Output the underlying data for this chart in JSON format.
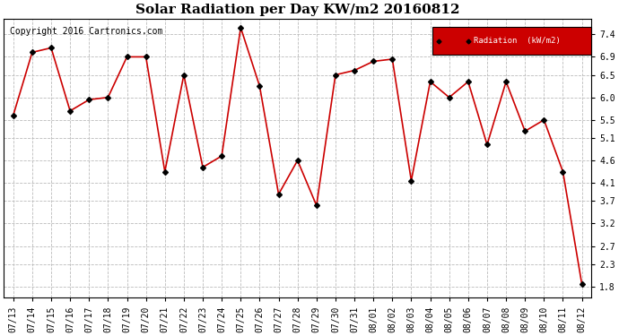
{
  "title": "Solar Radiation per Day KW/m2 20160812",
  "copyright": "Copyright 2016 Cartronics.com",
  "legend_label": "Radiation  (kW/m2)",
  "x_labels": [
    "07/13",
    "07/14",
    "07/15",
    "07/16",
    "07/17",
    "07/18",
    "07/19",
    "07/20",
    "07/21",
    "07/22",
    "07/23",
    "07/24",
    "07/25",
    "07/26",
    "07/27",
    "07/28",
    "07/29",
    "07/30",
    "07/31",
    "08/01",
    "08/02",
    "08/03",
    "08/04",
    "08/05",
    "08/06",
    "08/07",
    "08/08",
    "08/09",
    "08/10",
    "08/11",
    "08/12"
  ],
  "y_values": [
    5.6,
    7.0,
    7.1,
    5.7,
    5.95,
    6.0,
    6.9,
    6.9,
    4.35,
    6.5,
    4.45,
    4.7,
    7.55,
    6.25,
    3.85,
    4.6,
    3.6,
    6.5,
    6.6,
    6.8,
    6.85,
    4.15,
    6.35,
    6.0,
    6.35,
    4.95,
    6.35,
    5.25,
    5.5,
    4.35,
    1.85
  ],
  "line_color": "#cc0000",
  "marker_color": "#000000",
  "background_color": "#ffffff",
  "grid_color": "#bbbbbb",
  "y_ticks": [
    1.8,
    2.3,
    2.7,
    3.2,
    3.7,
    4.1,
    4.6,
    5.1,
    5.5,
    6.0,
    6.5,
    6.9,
    7.4
  ],
  "ylim": [
    1.55,
    7.75
  ],
  "legend_bg": "#cc0000",
  "legend_text_color": "#ffffff",
  "title_fontsize": 11,
  "tick_fontsize": 7,
  "copyright_fontsize": 7
}
